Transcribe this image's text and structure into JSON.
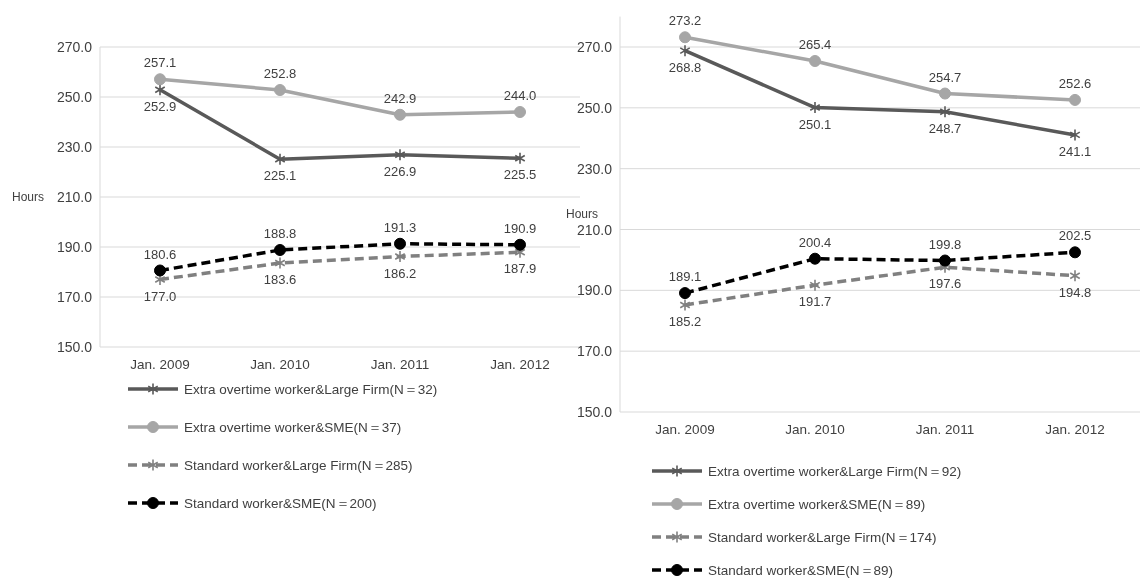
{
  "chart_data": [
    {
      "type": "line",
      "ylabel": "Hours",
      "categories": [
        "Jan. 2009",
        "Jan. 2010",
        "Jan. 2011",
        "Jan. 2012"
      ],
      "ylim": [
        150,
        270
      ],
      "yticks": [
        {
          "value": 150,
          "label": "150.0"
        },
        {
          "value": 170,
          "label": "170.0"
        },
        {
          "value": 190,
          "label": "190.0"
        },
        {
          "value": 210,
          "label": "210.0"
        },
        {
          "value": 230,
          "label": "230.0"
        },
        {
          "value": 250,
          "label": "250.0"
        },
        {
          "value": 270,
          "label": "270.0"
        }
      ],
      "grid": "y",
      "legend": "bottom",
      "series": [
        {
          "name": "Extra overtime worker&Large Firm(N＝32)",
          "color": "#595959",
          "marker": "cross",
          "line_style": "solid",
          "values": [
            252.9,
            225.1,
            226.9,
            225.5
          ],
          "value_labels": [
            "252.9",
            "225.1",
            "226.9",
            "225.5"
          ]
        },
        {
          "name": "Extra overtime worker&SME(N＝37)",
          "color": "#a6a6a6",
          "marker": "circle",
          "line_style": "solid",
          "values": [
            257.1,
            252.8,
            242.9,
            244.0
          ],
          "value_labels": [
            "257.1",
            "252.8",
            "242.9",
            "244.0"
          ]
        },
        {
          "name": "Standard worker&Large Firm(N＝285)",
          "color": "#808080",
          "marker": "cross",
          "line_style": "dashed",
          "values": [
            177.0,
            183.6,
            186.2,
            187.9
          ],
          "value_labels": [
            "177.0",
            "183.6",
            "186.2",
            "187.9"
          ]
        },
        {
          "name": "Standard worker&SME(N＝200)",
          "color": "#000000",
          "marker": "circle",
          "line_style": "dashed",
          "values": [
            180.6,
            188.8,
            191.3,
            190.9
          ],
          "value_labels": [
            "180.6",
            "188.8",
            "191.3",
            "190.9"
          ]
        }
      ]
    },
    {
      "type": "line",
      "ylabel": "Hours",
      "categories": [
        "Jan. 2009",
        "Jan. 2010",
        "Jan. 2011",
        "Jan. 2012"
      ],
      "ylim": [
        150,
        280
      ],
      "yticks": [
        {
          "value": 150,
          "label": "150.0"
        },
        {
          "value": 170,
          "label": "170.0"
        },
        {
          "value": 190,
          "label": "190.0"
        },
        {
          "value": 210,
          "label": "210.0"
        },
        {
          "value": 230,
          "label": "230.0"
        },
        {
          "value": 250,
          "label": "250.0"
        },
        {
          "value": 270,
          "label": "270.0"
        }
      ],
      "grid": "y",
      "legend": "bottom",
      "series": [
        {
          "name": "Extra overtime worker&Large Firm(N＝92)",
          "color": "#595959",
          "marker": "cross",
          "line_style": "solid",
          "values": [
            268.8,
            250.1,
            248.7,
            241.1
          ],
          "value_labels": [
            "268.8",
            "250.1",
            "248.7",
            "241.1"
          ]
        },
        {
          "name": "Extra overtime worker&SME(N＝89)",
          "color": "#a6a6a6",
          "marker": "circle",
          "line_style": "solid",
          "values": [
            273.2,
            265.4,
            254.7,
            252.6
          ],
          "value_labels": [
            "273.2",
            "265.4",
            "254.7",
            "252.6"
          ]
        },
        {
          "name": "Standard worker&Large Firm(N＝174)",
          "color": "#808080",
          "marker": "cross",
          "line_style": "dashed",
          "values": [
            185.2,
            191.7,
            197.6,
            194.8
          ],
          "value_labels": [
            "185.2",
            "191.7",
            "197.6",
            "194.8"
          ]
        },
        {
          "name": "Standard worker&SME(N＝89)",
          "color": "#000000",
          "marker": "circle",
          "line_style": "dashed",
          "values": [
            189.1,
            200.4,
            199.8,
            202.5
          ],
          "value_labels": [
            "189.1",
            "200.4",
            "199.8",
            "202.5"
          ]
        }
      ]
    }
  ]
}
